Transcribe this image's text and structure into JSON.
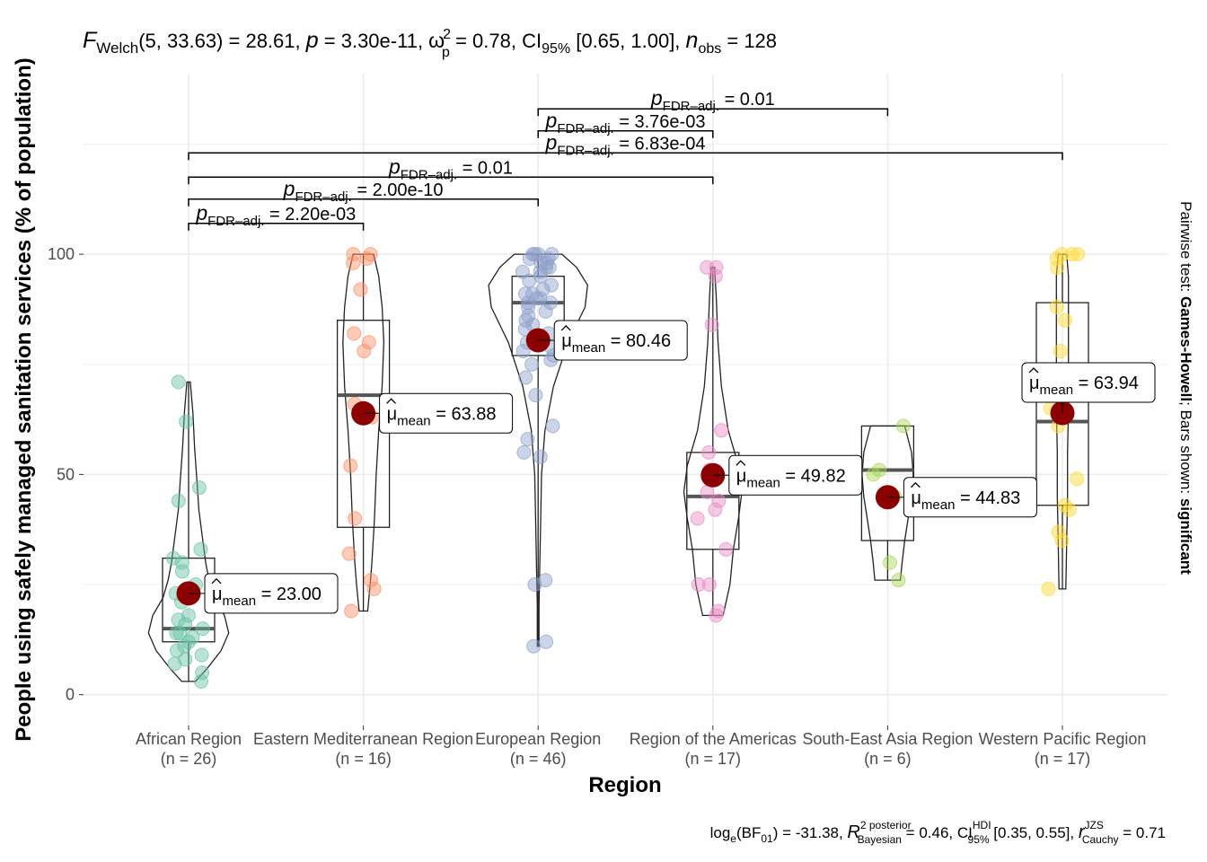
{
  "chart_data": {
    "type": "violin-box-scatter",
    "title": "F_Welch(5, 33.63) = 28.61, p = 3.30e-11, ω²p = 0.78, CI95% [0.65, 1.00], n_obs = 128",
    "title_parts": {
      "f": "F",
      "f_sub": "Welch",
      "f_args": "(5, 33.63) = 28.61, ",
      "p": "p",
      "p_val": " = 3.30e-11, ",
      "omega": "ω",
      "omega_sup": "2",
      "omega_sub": "p",
      "omega_val": " = 0.78, CI",
      "ci_sub": "95%",
      "ci_val": " [0.65, 1.00], ",
      "n": "n",
      "n_sub": "obs",
      "n_val": " = 128"
    },
    "xlabel": "Region",
    "ylabel": "People using safely managed sanitation services (% of population)",
    "ylim": [
      -7,
      141
    ],
    "yticks": [
      0,
      50,
      100
    ],
    "grid": true,
    "point_color_mean": "#8B0000",
    "categories": [
      {
        "name": "African Region",
        "n_label": "(n = 26)",
        "color": "#66C2A5",
        "mean": 23.0,
        "mean_label": "23.00",
        "box": {
          "q1": 12,
          "median": 15,
          "q3": 31,
          "whisker_low": 3,
          "whisker_high": 71
        },
        "violin": [
          [
            3,
            0.08
          ],
          [
            6,
            0.22
          ],
          [
            10,
            0.38
          ],
          [
            14,
            0.47
          ],
          [
            18,
            0.42
          ],
          [
            22,
            0.3
          ],
          [
            26,
            0.24
          ],
          [
            30,
            0.2
          ],
          [
            36,
            0.16
          ],
          [
            42,
            0.12
          ],
          [
            48,
            0.1
          ],
          [
            56,
            0.07
          ],
          [
            64,
            0.05
          ],
          [
            71,
            0.02
          ]
        ],
        "points": [
          3,
          5,
          7,
          8,
          9,
          10,
          11,
          12,
          13,
          14,
          14,
          15,
          16,
          17,
          18,
          21,
          23,
          25,
          28,
          30,
          31,
          33,
          44,
          47,
          62,
          71
        ]
      },
      {
        "name": "Eastern Mediterranean Region",
        "n_label": "(n = 16)",
        "color": "#FC8D62",
        "mean": 63.88,
        "mean_label": "63.88",
        "box": {
          "q1": 38,
          "median": 68,
          "q3": 85,
          "whisker_low": 19,
          "whisker_high": 100
        },
        "violin": [
          [
            19,
            0.05
          ],
          [
            25,
            0.08
          ],
          [
            30,
            0.1
          ],
          [
            40,
            0.13
          ],
          [
            50,
            0.15
          ],
          [
            60,
            0.18
          ],
          [
            70,
            0.22
          ],
          [
            80,
            0.24
          ],
          [
            88,
            0.22
          ],
          [
            95,
            0.18
          ],
          [
            100,
            0.12
          ]
        ],
        "points": [
          19,
          24,
          26,
          32,
          40,
          52,
          63,
          66,
          78,
          80,
          82,
          92,
          98,
          99,
          100,
          100
        ]
      },
      {
        "name": "European Region",
        "n_label": "(n = 46)",
        "color": "#8DA0CB",
        "mean": 80.46,
        "mean_label": "80.46",
        "box": {
          "q1": 77,
          "median": 89,
          "q3": 95,
          "whisker_low": 11,
          "whisker_high": 100
        },
        "violin": [
          [
            11,
            0.01
          ],
          [
            20,
            0.01
          ],
          [
            30,
            0.02
          ],
          [
            40,
            0.03
          ],
          [
            50,
            0.04
          ],
          [
            60,
            0.08
          ],
          [
            70,
            0.18
          ],
          [
            80,
            0.35
          ],
          [
            88,
            0.55
          ],
          [
            93,
            0.58
          ],
          [
            97,
            0.45
          ],
          [
            100,
            0.28
          ]
        ],
        "points": [
          11,
          12,
          25,
          26,
          54,
          55,
          58,
          61,
          68,
          72,
          75,
          76,
          77,
          78,
          79,
          80,
          81,
          82,
          83,
          84,
          85,
          86,
          87,
          88,
          89,
          89,
          90,
          90,
          91,
          91,
          92,
          93,
          94,
          95,
          96,
          96,
          97,
          97,
          98,
          98,
          99,
          99,
          100,
          100,
          100,
          100
        ]
      },
      {
        "name": "Region of the Americas",
        "n_label": "(n = 17)",
        "color": "#E78AC3",
        "mean": 49.82,
        "mean_label": "49.82",
        "box": {
          "q1": 33,
          "median": 45,
          "q3": 55,
          "whisker_low": 18,
          "whisker_high": 97
        },
        "violin": [
          [
            18,
            0.12
          ],
          [
            25,
            0.2
          ],
          [
            33,
            0.24
          ],
          [
            40,
            0.3
          ],
          [
            46,
            0.34
          ],
          [
            52,
            0.3
          ],
          [
            60,
            0.18
          ],
          [
            70,
            0.1
          ],
          [
            80,
            0.06
          ],
          [
            90,
            0.04
          ],
          [
            97,
            0.02
          ]
        ],
        "points": [
          18,
          19,
          25,
          25,
          33,
          40,
          42,
          44,
          46,
          50,
          51,
          55,
          60,
          84,
          95,
          97,
          97
        ]
      },
      {
        "name": "South-East Asia Region",
        "n_label": "(n = 6)",
        "color": "#A6D854",
        "mean": 44.83,
        "mean_label": "44.83",
        "box": {
          "q1": 35,
          "median": 51,
          "q3": 61,
          "whisker_low": 26,
          "whisker_high": 61
        },
        "violin": [
          [
            26,
            0.15
          ],
          [
            30,
            0.17
          ],
          [
            35,
            0.2
          ],
          [
            40,
            0.24
          ],
          [
            45,
            0.28
          ],
          [
            50,
            0.3
          ],
          [
            55,
            0.28
          ],
          [
            61,
            0.2
          ]
        ],
        "points": [
          26,
          30,
          45,
          50,
          51,
          61
        ]
      },
      {
        "name": "Western Pacific Region",
        "n_label": "(n = 17)",
        "color": "#FFD92F",
        "mean": 63.94,
        "mean_label": "63.94",
        "box": {
          "q1": 43,
          "median": 62,
          "q3": 89,
          "whisker_low": 24,
          "whisker_high": 100
        },
        "violin": [
          [
            24,
            0.04
          ],
          [
            35,
            0.05
          ],
          [
            45,
            0.06
          ],
          [
            55,
            0.06
          ],
          [
            65,
            0.07
          ],
          [
            75,
            0.07
          ],
          [
            85,
            0.07
          ],
          [
            95,
            0.07
          ],
          [
            100,
            0.05
          ]
        ],
        "points": [
          24,
          35,
          37,
          42,
          43,
          49,
          61,
          65,
          70,
          78,
          85,
          88,
          97,
          99,
          100,
          100,
          100
        ]
      }
    ],
    "mean_symbol": "μ",
    "mean_sub": "mean",
    "comparisons": [
      {
        "from": 0,
        "to": 1,
        "y": 107,
        "label_p": "p",
        "label_sub": "FDR–adj.",
        "label_val": " = 2.20e-03"
      },
      {
        "from": 0,
        "to": 2,
        "y": 112.5,
        "label_p": "p",
        "label_sub": "FDR–adj.",
        "label_val": " = 2.00e-10"
      },
      {
        "from": 0,
        "to": 3,
        "y": 117.5,
        "label_p": "p",
        "label_sub": "FDR–adj.",
        "label_val": " = 0.01"
      },
      {
        "from": 0,
        "to": 5,
        "y": 123,
        "label_p": "p",
        "label_sub": "FDR–adj.",
        "label_val": " = 6.83e-04"
      },
      {
        "from": 2,
        "to": 3,
        "y": 128,
        "label_p": "p",
        "label_sub": "FDR–adj.",
        "label_val": " = 3.76e-03"
      },
      {
        "from": 2,
        "to": 4,
        "y": 133,
        "label_p": "p",
        "label_sub": "FDR–adj.",
        "label_val": " = 0.01"
      }
    ],
    "caption": "loge(BF01) = -31.38, R² posterior Bayesian = 0.46, CI HDI 95% [0.35, 0.55], r JZS Cauchy = 0.71",
    "caption_parts": {
      "a": "log",
      "a_sub": "e",
      "b": "(BF",
      "b_sub": "01",
      "c": ") = -31.38, ",
      "r": "R",
      "r_sup": "2 posterior",
      "r_sub": "Bayesian",
      "d": " = 0.46, CI",
      "ci_sup": "HDI",
      "ci_sub": "95%",
      "e": " [0.35, 0.55], ",
      "rr": "r",
      "rr_sup": "JZS",
      "rr_sub": "Cauchy",
      "f": " = 0.71"
    },
    "side_label": {
      "prefix": "Pairwise test: ",
      "test": "Games-Howell",
      "middle": "; Bars shown: ",
      "shown": "significant"
    }
  }
}
